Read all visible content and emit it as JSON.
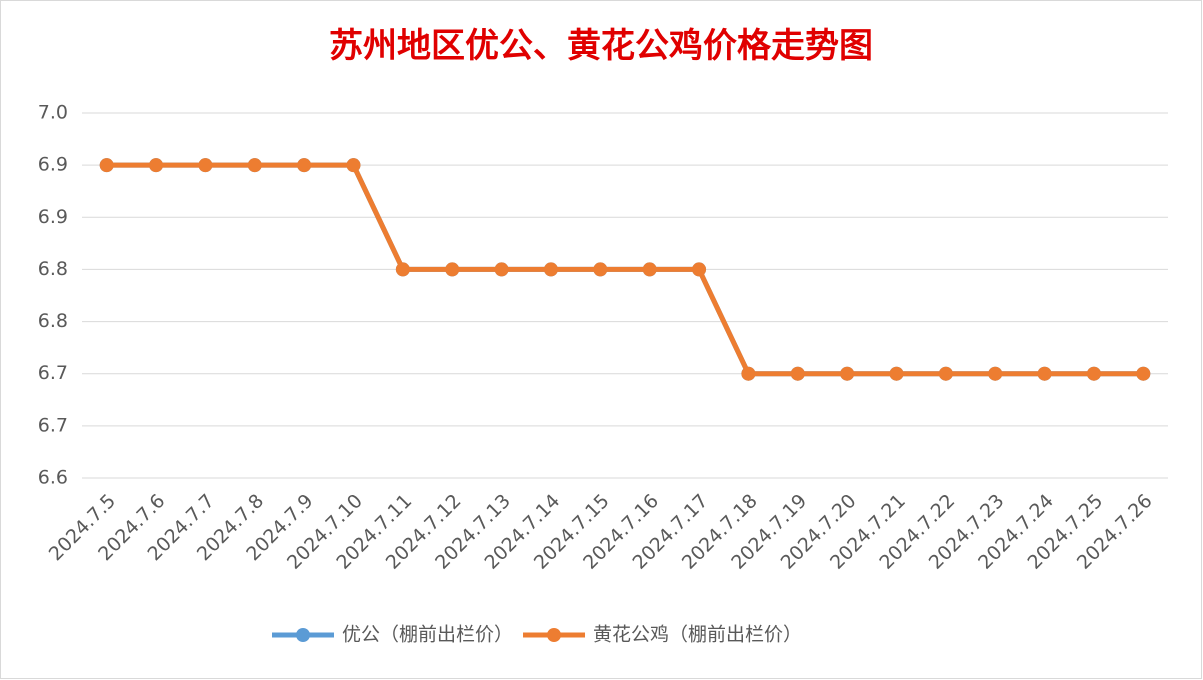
{
  "chart_data": {
    "type": "line",
    "title": "苏州地区优公、黄花公鸡价格走势图",
    "categories": [
      "2024.7.5",
      "2024.7.6",
      "2024.7.7",
      "2024.7.8",
      "2024.7.9",
      "2024.7.10",
      "2024.7.11",
      "2024.7.12",
      "2024.7.13",
      "2024.7.14",
      "2024.7.15",
      "2024.7.16",
      "2024.7.17",
      "2024.7.18",
      "2024.7.19",
      "2024.7.20",
      "2024.7.21",
      "2024.7.22",
      "2024.7.23",
      "2024.7.24",
      "2024.7.25",
      "2024.7.26"
    ],
    "series": [
      {
        "name": "优公（棚前出栏价）",
        "color": "#5b9bd5",
        "values": [
          6.9,
          6.9,
          6.9,
          6.9,
          6.9,
          6.9,
          6.8,
          6.8,
          6.8,
          6.8,
          6.8,
          6.8,
          6.8,
          6.7,
          6.7,
          6.7,
          6.7,
          6.7,
          6.7,
          6.7,
          6.7,
          6.7
        ]
      },
      {
        "name": "黄花公鸡（棚前出栏价）",
        "color": "#ed7d31",
        "values": [
          6.9,
          6.9,
          6.9,
          6.9,
          6.9,
          6.9,
          6.8,
          6.8,
          6.8,
          6.8,
          6.8,
          6.8,
          6.8,
          6.7,
          6.7,
          6.7,
          6.7,
          6.7,
          6.7,
          6.7,
          6.7,
          6.7
        ]
      }
    ],
    "ylim": [
      6.6,
      6.95
    ],
    "yticks": [
      6.6,
      {
        "value": 6.65,
        "label": "6.7"
      },
      6.7,
      {
        "value": 6.75,
        "label": "6.8"
      },
      6.8,
      {
        "value": 6.85,
        "label": "6.9"
      },
      6.9,
      {
        "value": 6.95,
        "label": "7.0"
      }
    ],
    "grid": true,
    "legend": "bottom"
  }
}
